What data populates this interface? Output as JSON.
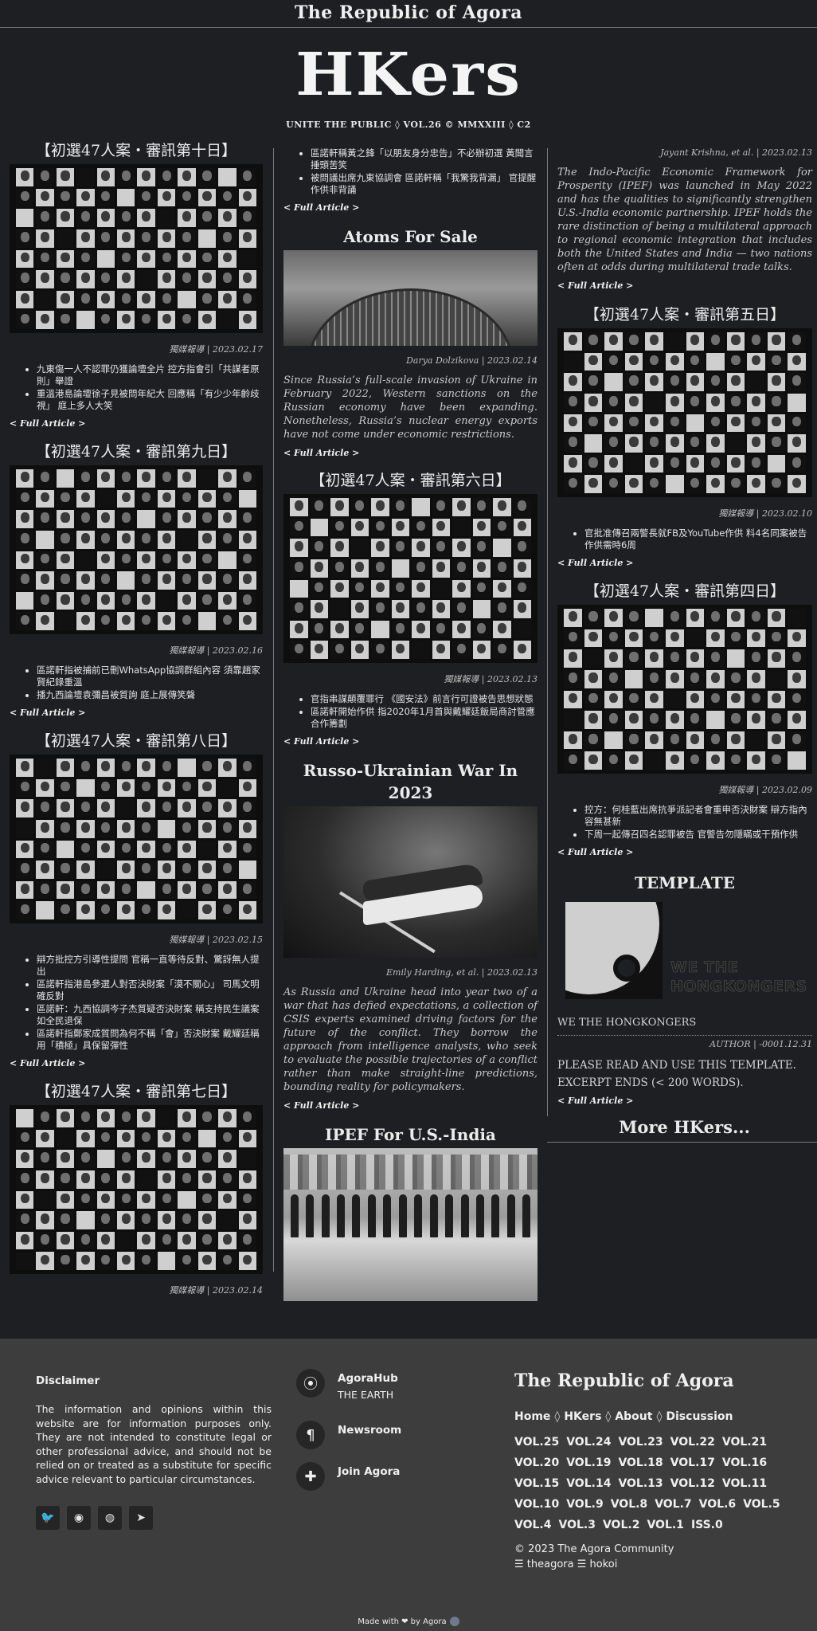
{
  "site": {
    "title": "The Republic of Agora",
    "logo": "HKers",
    "issue_line": "UNITE THE PUBLIC ◊ VOL.26 © MMXXIII ◊ C2"
  },
  "labels": {
    "full_article": "< Full Article >"
  },
  "col1": [
    {
      "title": "【初選47人案・審訊第十日】",
      "byline": "獨媒報導 | 2023.02.17",
      "bullets": [
        "九東傷一人不認罪仍獲論壇全片 控方指會引「共謀者原則」舉證",
        "重溫港島論壇徐子見被問年紀大 回應稱「有少少年齡歧視」 庭上多人大笑"
      ]
    },
    {
      "title": "【初選47人案・審訊第九日】",
      "byline": "獨媒報導 | 2023.02.16",
      "bullets": [
        "區諾軒指被捕前已刪WhatsApp協調群組內容 須靠趙家賢紀錄重溫",
        "播九西論壇袁彌昌被質詢 庭上展傳笑聲"
      ]
    },
    {
      "title": "【初選47人案・審訊第八日】",
      "byline": "獨媒報導 | 2023.02.15",
      "bullets": [
        "辯方批控方引導性提問 官稱一直等待反對、驚訝無人提出",
        "區諾軒指港島參選人對否決財案「漠不關心」 司馬文明確反對",
        "區諾軒：九西協調岑子杰質疑否決財案 稱支持民生議案如全民退保",
        "區諾軒指鄭家成質問為何不稱「會」否決財案 戴耀廷稱用「積極」具保留彈性"
      ]
    },
    {
      "title": "【初選47人案・審訊第七日】",
      "byline": "獨媒報導 | 2023.02.14"
    }
  ],
  "col2": {
    "top_bullets": [
      "區諾軒稱黃之鋒「以朋友身分忠告」不必辦初選 黃聞言捶頭苦笑",
      "被問議出席九東協調會 區諾軒稱「我驚我背漏」 官提醒作供非背誦"
    ],
    "atoms": {
      "title": "Atoms For Sale",
      "byline": "Darya Dolzikova | 2023.02.14",
      "summary": "Since Russia’s full-scale invasion of Ukraine in February 2022, Western sanctions on the Russian economy have been expanding. Nonetheless, Russia’s nuclear energy exports have not come under economic restrictions."
    },
    "day6": {
      "title": "【初選47人案・審訊第六日】",
      "byline": "獨媒報導 | 2023.02.13",
      "bullets": [
        "官指串謀顛覆罪行 《國安法》前言行可證被告思想狀態",
        "區諾軒開始作供 指2020年1月首與戴耀廷飯局商討管應合作籌劃"
      ]
    },
    "war": {
      "title": "Russo-Ukrainian War In 2023",
      "byline": "Emily Harding, et al. | 2023.02.13",
      "summary": "As Russia and Ukraine head into year two of a war that has defied expectations, a collection of CSIS experts examined driving factors for the future of the conflict. They borrow the approach from intelligence analysts, who seek to evaluate the possible trajectories of a conflict rather than make straight-line predictions, bounding reality for policymakers."
    },
    "ipef": {
      "title": "IPEF For U.S.-India"
    }
  },
  "col3": {
    "ipef_cont": {
      "byline": "Jayant Krishna, et al. | 2023.02.13",
      "summary": "The Indo-Pacific Economic Framework for Prosperity (IPEF) was launched in May 2022 and has the qualities to significantly strengthen U.S.-India economic partnership. IPEF holds the rare distinction of being a multilateral approach to regional economic integration that includes both the United States and India — two nations often at odds during multilateral trade talks."
    },
    "day5": {
      "title": "【初選47人案・審訊第五日】",
      "byline": "獨媒報導 | 2023.02.10",
      "bullets": [
        "官批准傳召兩警長就FB及YouTube作供 料4名同案被告作供需時6周"
      ]
    },
    "day4": {
      "title": "【初選47人案・審訊第四日】",
      "byline": "獨媒報導 | 2023.02.09",
      "bullets": [
        "控方：何桂藍出席抗爭派記者會重申否決財案 辯方指內容無甚新",
        "下周一起傳召四名認罪被告 官警告勿隱瞞或干預作供"
      ]
    },
    "template": {
      "title": "TEMPLATE",
      "image_text_1": "WE THE",
      "image_text_2": "HONGKONGERS",
      "caption": "WE THE HONGKONGERS",
      "byline": "AUTHOR | -0001.12.31",
      "line1": "PLEASE READ AND USE THIS TEMPLATE.",
      "line2": "EXCERPT ENDS (< 200 WORDS)."
    },
    "more": "More HKers..."
  },
  "footer": {
    "disclaimer_title": "Disclaimer",
    "disclaimer_text": "The information and opinions within this website are for information purposes only. They are not intended to constitute legal or other professional advice, and should not be relied on or treated as a substitute for specific advice relevant to particular circumstances.",
    "hub_title": "AgoraHub",
    "hub_sub": "THE EARTH",
    "newsroom": "Newsroom",
    "join": "Join Agora",
    "brand": "The Republic of Agora",
    "nav": [
      "Home",
      "HKers",
      "About",
      "Discussion"
    ],
    "nav_sep": "◊",
    "volumes": [
      "VOL.25",
      "VOL.24",
      "VOL.23",
      "VOL.22",
      "VOL.21",
      "VOL.20",
      "VOL.19",
      "VOL.18",
      "VOL.17",
      "VOL.16",
      "VOL.15",
      "VOL.14",
      "VOL.13",
      "VOL.12",
      "VOL.11",
      "VOL.10",
      "VOL.9",
      "VOL.8",
      "VOL.7",
      "VOL.6",
      "VOL.5",
      "VOL.4",
      "VOL.3",
      "VOL.2",
      "VOL.1",
      "ISS.0"
    ],
    "copyright": "© 2023 The Agora Community",
    "credits": "☰ theagora ☰ hokoi",
    "made_with": "Made with ❤ by Agora"
  },
  "icons": {
    "social": [
      "twitter-icon",
      "github-icon",
      "reddit-icon",
      "telegram-icon"
    ],
    "info": [
      "map-pin-icon",
      "paragraph-icon",
      "puzzle-icon"
    ]
  }
}
